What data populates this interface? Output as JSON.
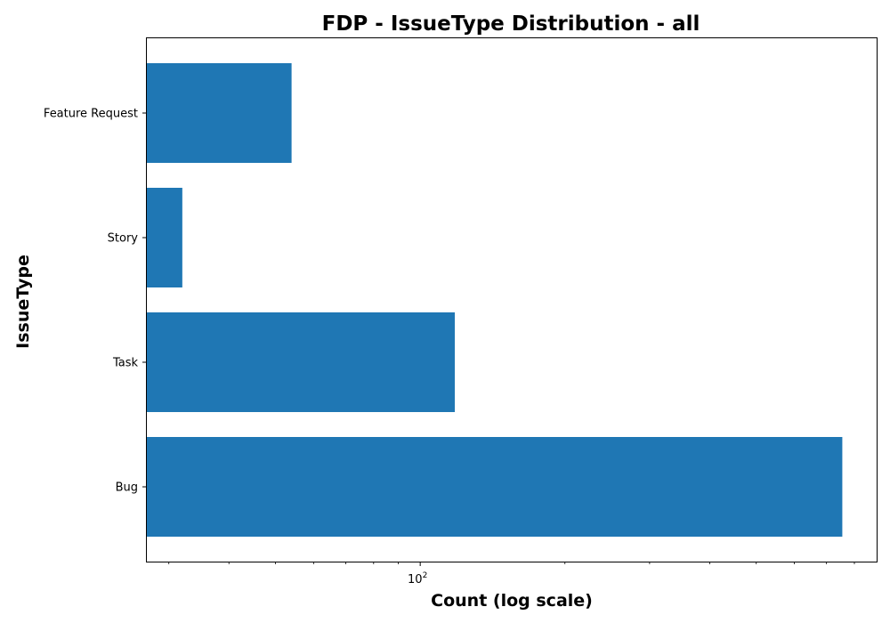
{
  "chart_data": {
    "type": "bar",
    "orientation": "horizontal",
    "title": "FDP - IssueType Distribution - all",
    "xlabel": "Count (log scale)",
    "ylabel": "IssueType",
    "x_scale": "log",
    "xlim": [
      27,
      890
    ],
    "categories": [
      "Bug",
      "Task",
      "Story",
      "Feature Request"
    ],
    "values": [
      755,
      118,
      32,
      54
    ],
    "major_ticks": [
      {
        "value": 100,
        "base": "10",
        "exponent": "2"
      }
    ],
    "minor_ticks": [
      30,
      40,
      50,
      60,
      70,
      80,
      90,
      200,
      300,
      400,
      500,
      600,
      700,
      800
    ],
    "bar_color": "#1f77b4",
    "grid": false,
    "legend": "none"
  }
}
